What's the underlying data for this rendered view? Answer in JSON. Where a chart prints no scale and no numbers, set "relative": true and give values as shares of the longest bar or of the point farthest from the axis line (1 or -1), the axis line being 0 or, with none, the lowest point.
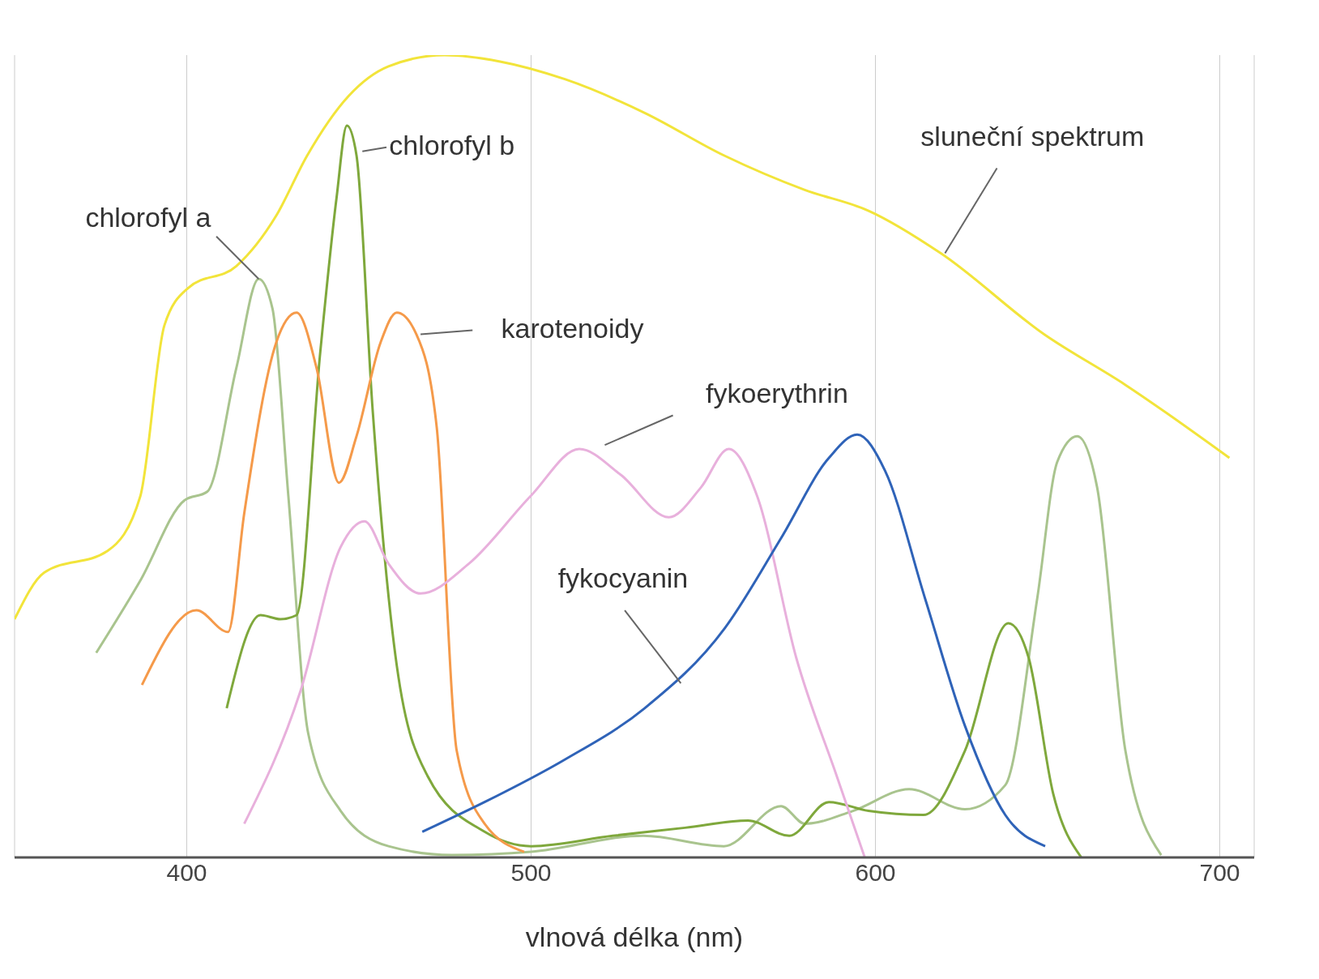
{
  "chart_data": {
    "type": "line",
    "relative": true,
    "xlabel": "vlnová délka (nm)",
    "xlim": [
      350,
      710
    ],
    "xticks": [
      400,
      500,
      600,
      700
    ],
    "grid": "x",
    "legend": false,
    "marker": "none",
    "line_style": "solid",
    "series": [
      {
        "name": "sluneční spektrum",
        "color": "#f2e43a",
        "x": [
          350,
          358.6,
          377,
          386.5,
          393.5,
          400.5,
          414.4,
          426,
          435,
          447,
          458.6,
          474.9,
          491,
          509.8,
          533,
          556,
          579.5,
          598,
          619,
          649,
          672.6,
          702.8
        ],
        "values": [
          0.297,
          0.355,
          0.382,
          0.45,
          0.663,
          0.71,
          0.737,
          0.8,
          0.875,
          0.949,
          0.986,
          1,
          0.992,
          0.97,
          0.928,
          0.875,
          0.832,
          0.806,
          0.753,
          0.652,
          0.589,
          0.498
        ]
      },
      {
        "name": "chlorofyl a",
        "color": "#a9c48e",
        "x": [
          373.7,
          386.5,
          399.3,
          406,
          414.4,
          420.9,
          424.9,
          429.5,
          435.3,
          444.7,
          458.6,
          477,
          500,
          532.6,
          556,
          572.6,
          579.5,
          593.5,
          609.8,
          626,
          637.7,
          647,
          652.8,
          658.6,
          664.4,
          672.6,
          683
        ],
        "values": [
          0.255,
          0.345,
          0.445,
          0.456,
          0.61,
          0.721,
          0.684,
          0.451,
          0.154,
          0.058,
          0.014,
          0.003,
          0.007,
          0.027,
          0.014,
          0.064,
          0.042,
          0.058,
          0.085,
          0.06,
          0.09,
          0.323,
          0.493,
          0.525,
          0.461,
          0.133,
          0.003
        ]
      },
      {
        "name": "chlorofyl b",
        "color": "#7fa83c",
        "x": [
          411.6,
          421.4,
          427.2,
          431.9,
          438.8,
          443.5,
          446.5,
          449.3,
          454,
          461,
          470,
          486.5,
          500,
          523.7,
          544.7,
          563,
          575,
          586.5,
          598,
          614,
          626,
          638.6,
          644.5,
          651.6,
          659.8
        ],
        "values": [
          0.186,
          0.302,
          0.297,
          0.302,
          0.631,
          0.822,
          0.912,
          0.875,
          0.557,
          0.239,
          0.101,
          0.032,
          0.014,
          0.027,
          0.037,
          0.046,
          0.027,
          0.069,
          0.058,
          0.053,
          0.133,
          0.292,
          0.249,
          0.08,
          0
        ]
      },
      {
        "name": "karotenoidy",
        "color": "#f59a4a",
        "x": [
          387,
          402.8,
          412,
          416.7,
          426,
          431.9,
          437.7,
          444.2,
          449.3,
          456.3,
          461,
          466.7,
          472.6,
          478.4,
          486.5,
          498
        ],
        "values": [
          0.215,
          0.308,
          0.281,
          0.429,
          0.642,
          0.679,
          0.61,
          0.467,
          0.525,
          0.642,
          0.679,
          0.652,
          0.536,
          0.133,
          0.042,
          0.007
        ]
      },
      {
        "name": "fykoerythrin",
        "color": "#e8b0dc",
        "x": [
          416.7,
          433,
          444.7,
          451.6,
          458.6,
          467.9,
          481.9,
          500,
          514,
          526,
          540,
          549.3,
          557.4,
          565.6,
          577,
          588.8,
          596.9
        ],
        "values": [
          0.042,
          0.207,
          0.387,
          0.419,
          0.366,
          0.329,
          0.366,
          0.451,
          0.509,
          0.477,
          0.424,
          0.461,
          0.509,
          0.451,
          0.249,
          0.101,
          0
        ]
      },
      {
        "name": "fykocyanin",
        "color": "#2f63b8",
        "x": [
          468.4,
          486.5,
          509.8,
          533,
          556.3,
          572.6,
          586.5,
          594.7,
          602.8,
          614.4,
          626,
          637.7,
          649.3
        ],
        "values": [
          0.032,
          0.069,
          0.122,
          0.186,
          0.286,
          0.398,
          0.498,
          0.527,
          0.482,
          0.323,
          0.164,
          0.053,
          0.014
        ]
      }
    ]
  }
}
